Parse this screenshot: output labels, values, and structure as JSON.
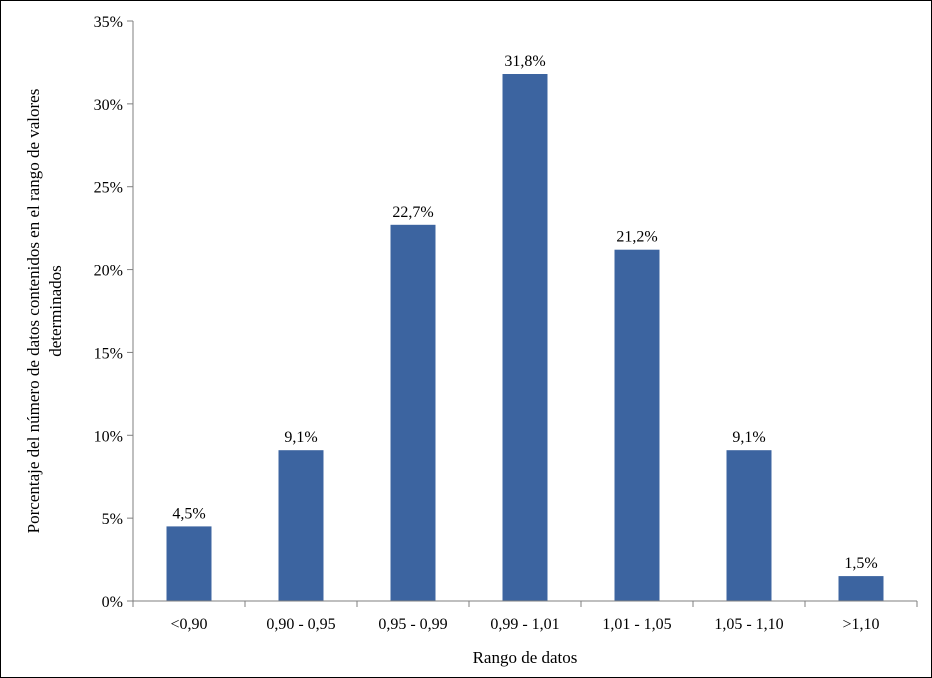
{
  "chart_data": {
    "type": "bar",
    "title": "",
    "xlabel": "Rango de datos",
    "ylabel_lines": [
      "Porcentaje del número de datos contenidos en el rango de valores",
      "determinados"
    ],
    "categories": [
      "<0,90",
      "0,90 - 0,95",
      "0,95 - 0,99",
      "0,99 - 1,01",
      "1,01 - 1,05",
      "1,05 - 1,10",
      ">1,10"
    ],
    "values": [
      4.5,
      9.1,
      22.7,
      31.8,
      21.2,
      9.1,
      1.5
    ],
    "data_labels": [
      "4,5%",
      "9,1%",
      "22,7%",
      "31,8%",
      "21,2%",
      "9,1%",
      "1,5%"
    ],
    "ylim": [
      0,
      35
    ],
    "yticks": [
      0,
      5,
      10,
      15,
      20,
      25,
      30,
      35
    ],
    "ytick_labels": [
      "0%",
      "5%",
      "10%",
      "15%",
      "20%",
      "25%",
      "30%",
      "35%"
    ],
    "grid": false,
    "legend": "none",
    "bar_color": "#3c64a0",
    "axis_color": "#7f7f7f"
  }
}
